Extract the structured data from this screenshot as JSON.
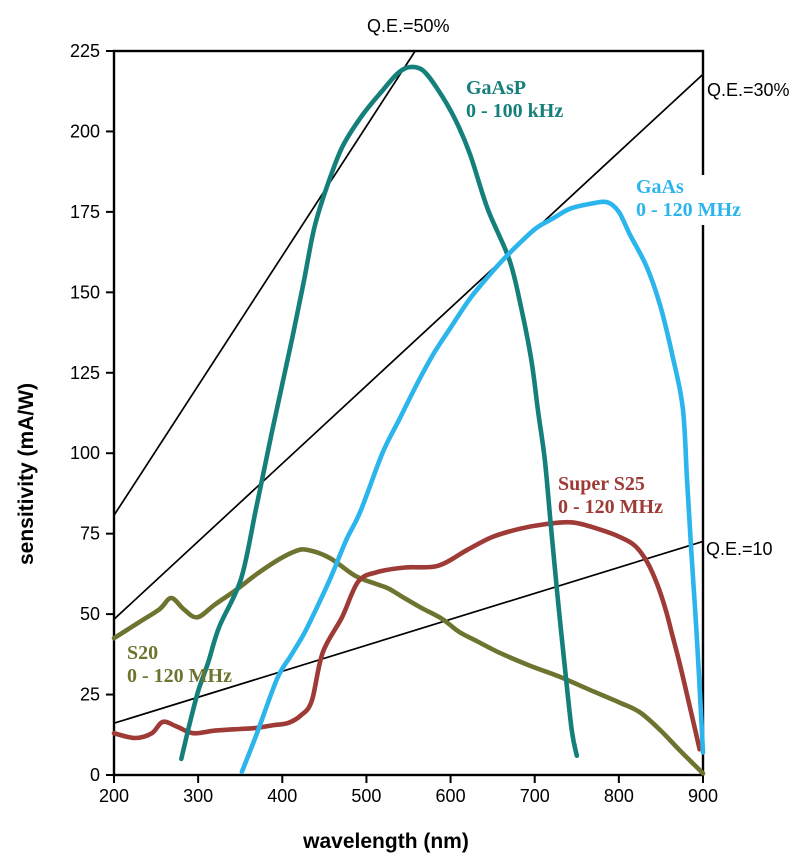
{
  "chart_data": {
    "type": "line",
    "title": "",
    "xlabel": "wavelength (nm)",
    "ylabel": "sensitivity (mA/W)",
    "xlim": [
      200,
      900
    ],
    "ylim": [
      0,
      225
    ],
    "xticks": [
      200,
      300,
      400,
      500,
      600,
      700,
      800,
      900
    ],
    "yticks": [
      0,
      25,
      50,
      75,
      100,
      125,
      150,
      175,
      200,
      225
    ],
    "grid": false,
    "legend_position": "inline-curve-labels",
    "series": [
      {
        "name": "S20",
        "note": "0 - 120 MHz",
        "color": "#6E7430",
        "points": [
          [
            200,
            42.5
          ],
          [
            230,
            47.5
          ],
          [
            254,
            51.5
          ],
          [
            268,
            55
          ],
          [
            283,
            51.5
          ],
          [
            299,
            49
          ],
          [
            320,
            53
          ],
          [
            345,
            57.5
          ],
          [
            370,
            62.5
          ],
          [
            396,
            67
          ],
          [
            415,
            69.5
          ],
          [
            429,
            70
          ],
          [
            456,
            67.5
          ],
          [
            486,
            62
          ],
          [
            510,
            59.5
          ],
          [
            526,
            58
          ],
          [
            545,
            55
          ],
          [
            565,
            52
          ],
          [
            590,
            48.5
          ],
          [
            610,
            44.5
          ],
          [
            632,
            41.5
          ],
          [
            658,
            38
          ],
          [
            694,
            34
          ],
          [
            730,
            30.5
          ],
          [
            765,
            26.5
          ],
          [
            801,
            22.5
          ],
          [
            825,
            19.5
          ],
          [
            849,
            14
          ],
          [
            873,
            7.5
          ],
          [
            900,
            0.5
          ]
        ]
      },
      {
        "name": "Super S25",
        "note": "0 - 120 MHz",
        "color": "#9E3B37",
        "points": [
          [
            200,
            13
          ],
          [
            225,
            11.5
          ],
          [
            245,
            13
          ],
          [
            258,
            16.5
          ],
          [
            275,
            15
          ],
          [
            294,
            13
          ],
          [
            320,
            13.8
          ],
          [
            350,
            14.3
          ],
          [
            368,
            14.6
          ],
          [
            390,
            15.5
          ],
          [
            407,
            16.2
          ],
          [
            422,
            18.5
          ],
          [
            435,
            23
          ],
          [
            448,
            38
          ],
          [
            471,
            49
          ],
          [
            490,
            60
          ],
          [
            512,
            63
          ],
          [
            546,
            64.5
          ],
          [
            585,
            65
          ],
          [
            620,
            70
          ],
          [
            650,
            74
          ],
          [
            682,
            76.5
          ],
          [
            714,
            78
          ],
          [
            745,
            78.5
          ],
          [
            775,
            76.5
          ],
          [
            801,
            74
          ],
          [
            820,
            71
          ],
          [
            834,
            66
          ],
          [
            846,
            59
          ],
          [
            856,
            51
          ],
          [
            864,
            43
          ],
          [
            871,
            36
          ],
          [
            881,
            25
          ],
          [
            889,
            16
          ],
          [
            896,
            8
          ]
        ]
      },
      {
        "name": "GaAsP",
        "note": "0 - 100 kHz",
        "color": "#15807B",
        "points": [
          [
            280,
            5
          ],
          [
            290,
            16
          ],
          [
            300,
            26
          ],
          [
            312,
            35
          ],
          [
            325,
            46
          ],
          [
            351,
            61
          ],
          [
            369,
            83
          ],
          [
            388,
            107
          ],
          [
            412,
            136
          ],
          [
            426,
            154
          ],
          [
            438,
            170
          ],
          [
            452,
            182
          ],
          [
            471,
            195
          ],
          [
            495,
            205
          ],
          [
            520,
            213
          ],
          [
            537,
            218
          ],
          [
            551,
            220
          ],
          [
            567,
            219
          ],
          [
            585,
            213
          ],
          [
            605,
            204
          ],
          [
            623,
            193
          ],
          [
            644,
            176
          ],
          [
            670,
            160
          ],
          [
            684,
            145
          ],
          [
            696,
            129
          ],
          [
            704,
            113
          ],
          [
            712,
            98
          ],
          [
            719,
            78
          ],
          [
            727,
            56
          ],
          [
            736,
            33
          ],
          [
            744,
            14
          ],
          [
            750,
            6
          ]
        ]
      },
      {
        "name": "GaAs",
        "note": "0 - 120 MHz",
        "color": "#2BB5EC",
        "points": [
          [
            352,
            1
          ],
          [
            370,
            13
          ],
          [
            394,
            30
          ],
          [
            410,
            37
          ],
          [
            426,
            44
          ],
          [
            441,
            52
          ],
          [
            457,
            61
          ],
          [
            476,
            73
          ],
          [
            493,
            82
          ],
          [
            519,
            100
          ],
          [
            540,
            111
          ],
          [
            561,
            122
          ],
          [
            580,
            131
          ],
          [
            600,
            139
          ],
          [
            623,
            148
          ],
          [
            645,
            155
          ],
          [
            662,
            160
          ],
          [
            681,
            165
          ],
          [
            702,
            170
          ],
          [
            722,
            173
          ],
          [
            742,
            176
          ],
          [
            766,
            177.5
          ],
          [
            786,
            178
          ],
          [
            800,
            175
          ],
          [
            813,
            168
          ],
          [
            833,
            158
          ],
          [
            849,
            146
          ],
          [
            864,
            130
          ],
          [
            876,
            114
          ],
          [
            881,
            92
          ],
          [
            886,
            70
          ],
          [
            891,
            50
          ],
          [
            895,
            32
          ],
          [
            900,
            7
          ]
        ]
      }
    ],
    "qe_lines": [
      {
        "label": "Q.E.=50%",
        "color": "#000000",
        "points": [
          [
            200,
            80.7
          ],
          [
            558,
            225
          ]
        ]
      },
      {
        "label": "Q.E.=30%",
        "color": "#000000",
        "points": [
          [
            200,
            48.4
          ],
          [
            900,
            217.8
          ]
        ]
      },
      {
        "label": "Q.E.=10",
        "color": "#000000",
        "points": [
          [
            200,
            16.1
          ],
          [
            900,
            72.6
          ]
        ]
      }
    ]
  }
}
